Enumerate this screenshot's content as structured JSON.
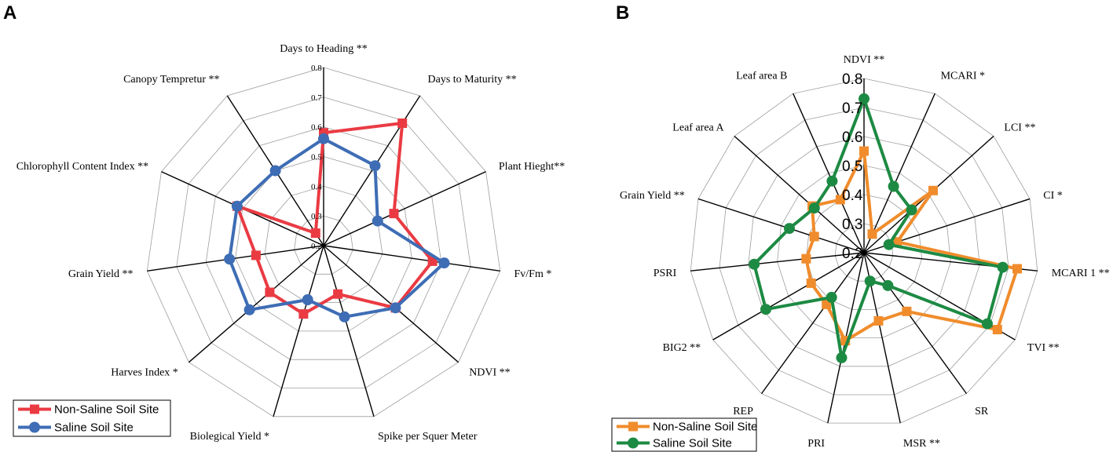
{
  "chart_data": [
    {
      "type": "radar",
      "panel_label": "A",
      "axes": [
        "Days to Heading **",
        "Days to Maturity **",
        "Plant Hieght**",
        "Fv/Fm *",
        "NDVI **",
        "Spike per Squer Meter",
        "Biolegical Yield *",
        "Harves Index *",
        "Grain Yield **",
        "Chlorophyll Content Index **",
        "Canopy Tempretur **"
      ],
      "rlim": [
        0.2,
        0.8
      ],
      "ticks": [
        "0.2",
        "0.3",
        "0.4",
        "0.5",
        "0.6",
        "0.7",
        "0.8"
      ],
      "series": [
        {
          "name": "Non-Saline Soil Site",
          "color": "#ea3b43",
          "marker": "square",
          "values": [
            0.58,
            0.69,
            0.46,
            0.57,
            0.52,
            0.37,
            0.44,
            0.44,
            0.43,
            0.52,
            0.25
          ]
        },
        {
          "name": "Saline Soil Site",
          "color": "#3e6db5",
          "marker": "circle",
          "values": [
            0.56,
            0.52,
            0.4,
            0.61,
            0.52,
            0.45,
            0.39,
            0.53,
            0.52,
            0.52,
            0.5
          ]
        }
      ],
      "legend": "bottom-left"
    },
    {
      "type": "radar",
      "panel_label": "B",
      "axes": [
        "NDVI **",
        "MCARI *",
        "LCI **",
        "CI *",
        "MCARI 1 **",
        "TVI **",
        "SR",
        "MSR **",
        "PRI",
        "REP",
        "BIG2 **",
        "PSRI",
        "Grain Yield **",
        "Leaf area A",
        "Leaf area B"
      ],
      "rlim": [
        0.2,
        0.8
      ],
      "ticks": [
        "0.2",
        "0.3",
        "0.4",
        "0.5",
        "0.6",
        "0.7",
        "0.8"
      ],
      "series": [
        {
          "name": "Non-Saline Soil Site",
          "color": "#f08c2c",
          "marker": "square",
          "values": [
            0.55,
            0.27,
            0.52,
            0.32,
            0.73,
            0.73,
            0.45,
            0.44,
            0.51,
            0.42,
            0.41,
            0.4,
            0.38,
            0.44,
            0.4
          ]
        },
        {
          "name": "Saline Soil Site",
          "color": "#1d8a43",
          "marker": "circle",
          "values": [
            0.73,
            0.45,
            0.42,
            0.29,
            0.68,
            0.69,
            0.34,
            0.3,
            0.57,
            0.39,
            0.59,
            0.58,
            0.47,
            0.43,
            0.47
          ]
        }
      ],
      "legend": "bottom-left"
    }
  ]
}
